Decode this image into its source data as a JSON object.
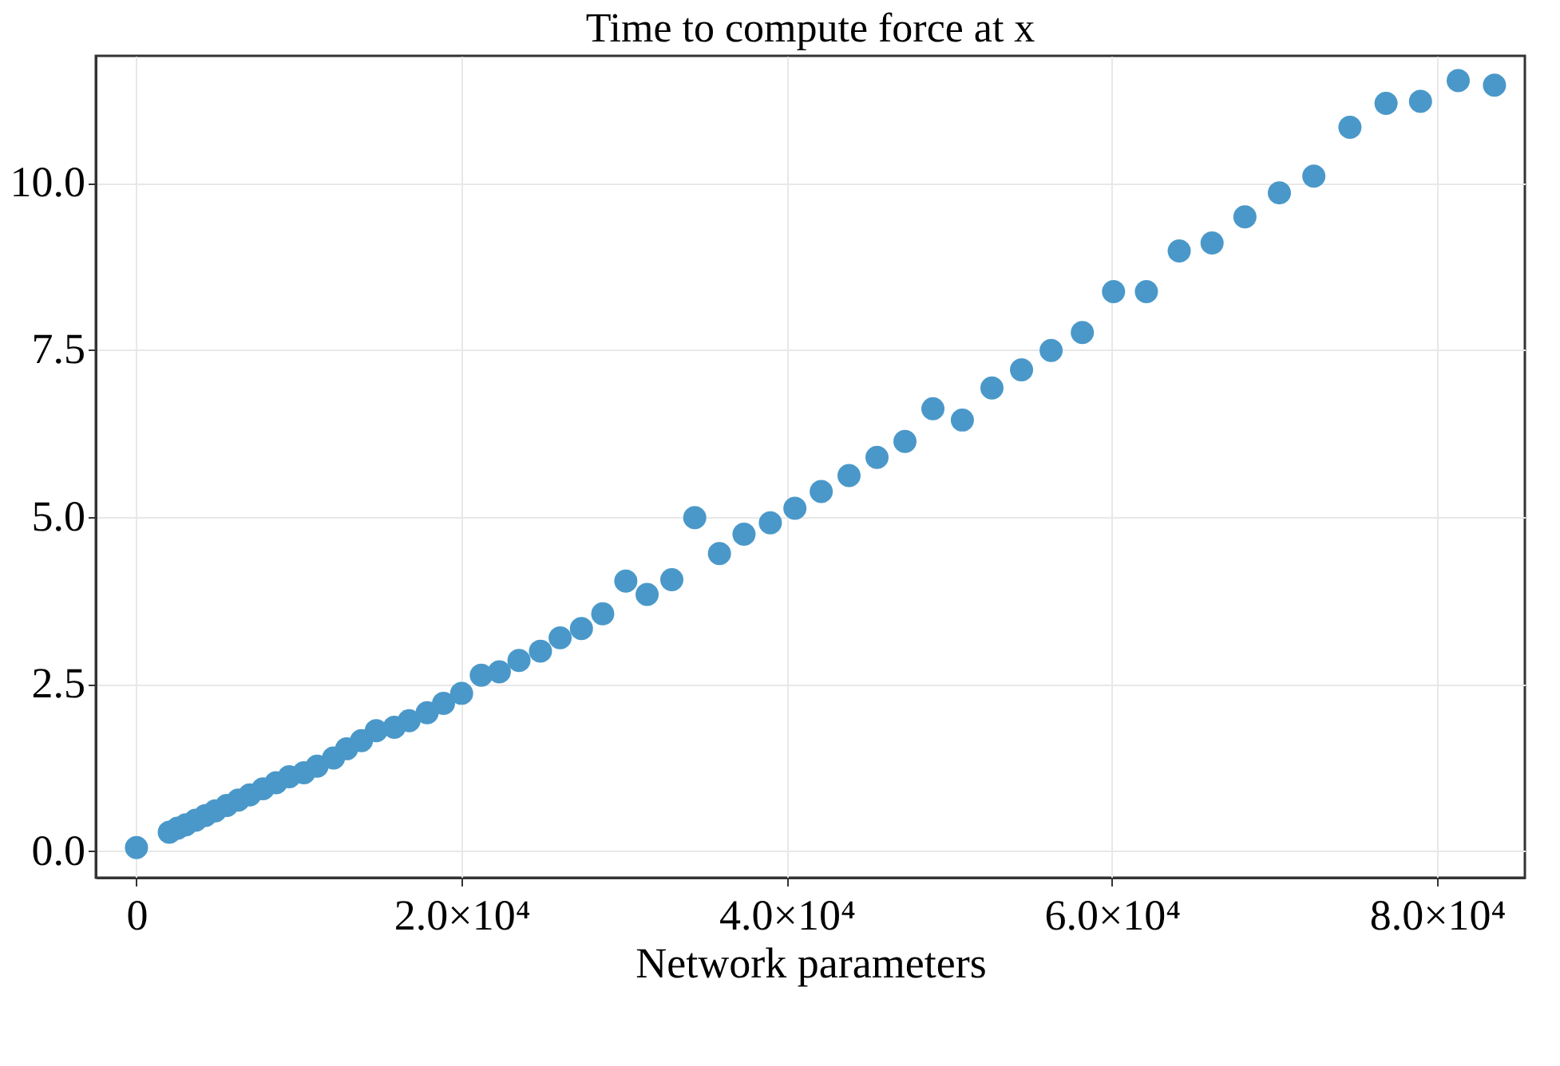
{
  "chart_data": {
    "type": "scatter",
    "title": "Time to compute force at x",
    "xlabel": "Network parameters",
    "x": [
      0,
      2020,
      2525,
      3030,
      3636,
      4242,
      4848,
      5555,
      6262,
      6969,
      7777,
      8585,
      9393,
      10300,
      11110,
      12120,
      12930,
      13840,
      14750,
      15860,
      16770,
      17880,
      18890,
      20000,
      21210,
      22320,
      23530,
      24850,
      26060,
      27370,
      28680,
      30100,
      31410,
      32930,
      34340,
      35860,
      37370,
      38990,
      40500,
      42120,
      43830,
      45550,
      47270,
      48990,
      50800,
      52620,
      54440,
      56260,
      58180,
      60100,
      62120,
      64140,
      66160,
      68180,
      70300,
      72420,
      74640,
      76860,
      78980,
      81300,
      83530
    ],
    "series": [
      {
        "color": "#4a98c9",
        "values": [
          0.05,
          0.28,
          0.34,
          0.39,
          0.46,
          0.53,
          0.6,
          0.68,
          0.76,
          0.84,
          0.93,
          1.02,
          1.11,
          1.17,
          1.27,
          1.39,
          1.53,
          1.65,
          1.8,
          1.85,
          1.95,
          2.07,
          2.21,
          2.36,
          2.63,
          2.68,
          2.85,
          2.99,
          3.19,
          3.33,
          3.55,
          4.04,
          3.84,
          4.06,
          4.99,
          4.45,
          4.74,
          4.91,
          5.13,
          5.38,
          5.62,
          5.89,
          6.13,
          6.62,
          6.45,
          6.93,
          7.2,
          7.49,
          7.76,
          8.37,
          8.37,
          8.98,
          9.1,
          9.49,
          9.85,
          10.1,
          10.83,
          11.19,
          11.22,
          11.53,
          11.46
        ]
      }
    ],
    "xlim": [
      -2500,
      85400
    ],
    "ylim": [
      -0.4,
      11.9
    ],
    "xticks": [
      0,
      {
        "value": 20000,
        "label": "2.0×10⁴"
      },
      {
        "value": 40000,
        "label": "4.0×10⁴"
      },
      {
        "value": 60000,
        "label": "6.0×10⁴"
      },
      {
        "value": 80000,
        "label": "8.0×10⁴"
      }
    ],
    "yticks": [
      {
        "value": 0,
        "label": "0.0"
      },
      {
        "value": 2.5,
        "label": "2.5"
      },
      {
        "value": 5,
        "label": "5.0"
      },
      {
        "value": 7.5,
        "label": "7.5"
      },
      {
        "value": 10,
        "label": "10.0"
      }
    ],
    "grid": true,
    "marker": "circle"
  }
}
